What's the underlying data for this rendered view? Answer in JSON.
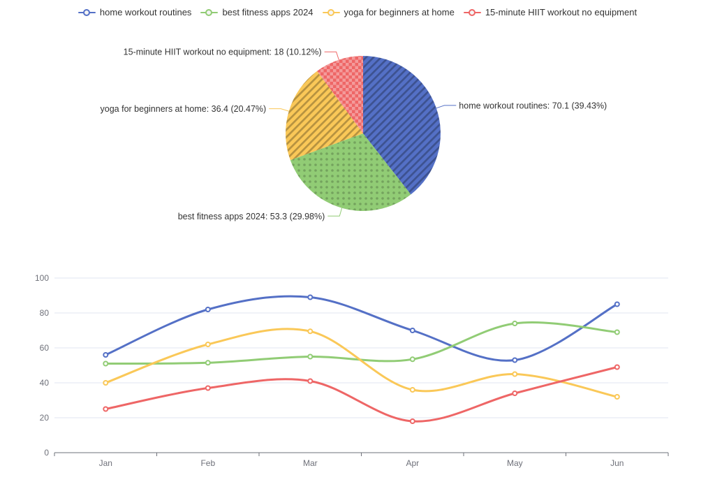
{
  "background": "#ffffff",
  "colors": {
    "series_home": "#5470c6",
    "series_best": "#91cc75",
    "series_yoga": "#fac858",
    "series_hiit": "#ee6666",
    "grid_line": "#E0E6F1",
    "axis_line": "#6E7079",
    "axis_label_text": "#6E7079",
    "legend_text": "#333333",
    "pie_label_text": "#333333"
  },
  "legend": {
    "items": [
      {
        "label": "home workout routines",
        "color": "#5470c6"
      },
      {
        "label": "best fitness apps 2024",
        "color": "#91cc75"
      },
      {
        "label": "yoga for beginners at home",
        "color": "#fac858"
      },
      {
        "label": "15-minute HIIT workout no equipment",
        "color": "#ee6666"
      }
    ]
  },
  "chart_data": [
    {
      "type": "pie",
      "legend_position": "top",
      "start_angle": "12-oclock-clockwise",
      "slices": [
        {
          "name": "home workout routines",
          "value": 70.1,
          "percent": 39.43,
          "display": "home workout routines: 70.1 (39.43%)",
          "color": "#5470c6",
          "pattern": "diagonal-stripe"
        },
        {
          "name": "best fitness apps 2024",
          "value": 53.3,
          "percent": 29.98,
          "display": "best fitness apps 2024: 53.3 (29.98%)",
          "color": "#91cc75",
          "pattern": "dot"
        },
        {
          "name": "yoga for beginners at home",
          "value": 36.4,
          "percent": 20.47,
          "display": "yoga for beginners at home: 36.4 (20.47%)",
          "color": "#fac858",
          "pattern": "diagonal-stripe"
        },
        {
          "name": "15-minute HIIT workout no equipment",
          "value": 18,
          "percent": 10.12,
          "display": "15-minute HIIT workout no equipment: 18 (10.12%)",
          "color": "#ee6666",
          "pattern": "checkerboard"
        }
      ]
    },
    {
      "type": "line",
      "smooth": true,
      "grid": true,
      "categories": [
        "Jan",
        "Feb",
        "Mar",
        "Apr",
        "May",
        "Jun"
      ],
      "yticks": [
        0,
        20,
        40,
        60,
        80,
        100
      ],
      "ylim": [
        0,
        100
      ],
      "series": [
        {
          "name": "home workout routines",
          "color": "#5470c6",
          "values": [
            56,
            82,
            89,
            70,
            53,
            85
          ]
        },
        {
          "name": "best fitness apps 2024",
          "color": "#91cc75",
          "values": [
            51,
            51.5,
            55,
            53.5,
            74,
            69
          ]
        },
        {
          "name": "yoga for beginners at home",
          "color": "#fac858",
          "values": [
            40,
            62,
            69.5,
            36,
            45,
            32
          ]
        },
        {
          "name": "15-minute HIIT workout no equipment",
          "color": "#ee6666",
          "values": [
            25,
            37,
            41,
            18,
            34,
            49
          ]
        }
      ]
    }
  ]
}
